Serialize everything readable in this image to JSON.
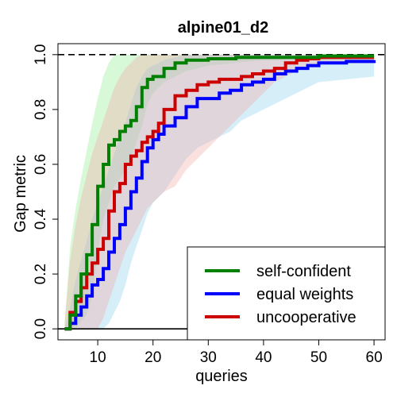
{
  "chart_data": {
    "type": "line",
    "title": "alpine01_d2",
    "xlabel": "queries",
    "ylabel": "Gap metric",
    "xlim": [
      2.8,
      62
    ],
    "ylim": [
      -0.04,
      1.04
    ],
    "x_ticks": [
      10,
      20,
      30,
      40,
      50,
      60
    ],
    "x_tick_labels": [
      "10",
      "20",
      "30",
      "40",
      "50",
      "60"
    ],
    "y_ticks": [
      0.0,
      0.2,
      0.4,
      0.6,
      0.8,
      1.0
    ],
    "y_tick_labels": [
      "0.0",
      "0.2",
      "0.4",
      "0.6",
      "0.8",
      "1.0"
    ],
    "reference_lines": [
      {
        "y": 1.0,
        "style": "dashed",
        "color": "#000000"
      },
      {
        "y": 0.0,
        "style": "solid",
        "color": "#000000"
      }
    ],
    "legend": {
      "position": "bottom-right"
    },
    "series": [
      {
        "name": "self-confident",
        "color": "#008000",
        "band_color": "#90ee90",
        "x": [
          4,
          5,
          6,
          7,
          8,
          9,
          10,
          11,
          12,
          13,
          14,
          15,
          16,
          17,
          18,
          19,
          20,
          22,
          24,
          26,
          28,
          30,
          35,
          40,
          45,
          50,
          55,
          60
        ],
        "y": [
          0.0,
          0.05,
          0.12,
          0.2,
          0.27,
          0.38,
          0.52,
          0.6,
          0.67,
          0.69,
          0.72,
          0.74,
          0.76,
          0.81,
          0.88,
          0.91,
          0.92,
          0.95,
          0.97,
          0.98,
          0.98,
          0.985,
          0.99,
          0.99,
          0.99,
          0.995,
          0.995,
          0.995
        ],
        "lower": [
          0.0,
          0.0,
          0.0,
          0.03,
          0.05,
          0.12,
          0.28,
          0.4,
          0.46,
          0.52,
          0.55,
          0.58,
          0.62,
          0.68,
          0.74,
          0.82,
          0.86,
          0.9,
          0.92,
          0.94,
          0.95,
          0.96,
          0.97,
          0.98,
          0.98,
          0.98,
          0.98,
          0.98
        ],
        "upper": [
          0.02,
          0.3,
          0.44,
          0.55,
          0.65,
          0.75,
          0.84,
          0.92,
          0.97,
          1.0,
          1.0,
          1.0,
          1.0,
          1.0,
          1.0,
          1.0,
          1.0,
          1.0,
          1.0,
          1.0,
          1.0,
          1.0,
          1.0,
          1.0,
          1.0,
          1.0,
          1.0,
          1.0
        ]
      },
      {
        "name": "equal weights",
        "color": "#0000ff",
        "band_color": "#87ceeb",
        "x": [
          4,
          5,
          6,
          7,
          8,
          9,
          10,
          11,
          12,
          13,
          14,
          15,
          16,
          17,
          18,
          19,
          20,
          21,
          22,
          24,
          26,
          28,
          30,
          32,
          34,
          36,
          38,
          40,
          42,
          44,
          46,
          48,
          50,
          55,
          60
        ],
        "y": [
          0.0,
          0.02,
          0.05,
          0.08,
          0.12,
          0.16,
          0.18,
          0.22,
          0.28,
          0.33,
          0.38,
          0.44,
          0.5,
          0.55,
          0.61,
          0.66,
          0.69,
          0.71,
          0.74,
          0.77,
          0.81,
          0.84,
          0.84,
          0.86,
          0.87,
          0.89,
          0.9,
          0.91,
          0.93,
          0.94,
          0.95,
          0.96,
          0.97,
          0.975,
          0.98
        ],
        "lower": [
          0.0,
          0.0,
          0.0,
          0.0,
          0.0,
          0.0,
          0.0,
          0.0,
          0.02,
          0.06,
          0.1,
          0.16,
          0.24,
          0.3,
          0.36,
          0.42,
          0.46,
          0.48,
          0.5,
          0.56,
          0.62,
          0.66,
          0.68,
          0.7,
          0.72,
          0.76,
          0.78,
          0.8,
          0.82,
          0.84,
          0.86,
          0.88,
          0.9,
          0.91,
          0.92
        ],
        "upper": [
          0.0,
          0.08,
          0.18,
          0.25,
          0.32,
          0.4,
          0.46,
          0.52,
          0.58,
          0.64,
          0.7,
          0.75,
          0.82,
          0.88,
          0.92,
          0.95,
          0.96,
          0.97,
          0.98,
          0.99,
          1.0,
          1.0,
          1.0,
          1.0,
          1.0,
          1.0,
          1.0,
          1.0,
          1.0,
          1.0,
          1.0,
          1.0,
          1.0,
          1.0,
          1.0
        ]
      },
      {
        "name": "uncooperative",
        "color": "#cc0000",
        "band_color": "#f4a6a6",
        "x": [
          4,
          5,
          6,
          7,
          8,
          9,
          10,
          11,
          12,
          13,
          14,
          15,
          16,
          17,
          18,
          19,
          20,
          21,
          22,
          24,
          26,
          28,
          30,
          32,
          34,
          36,
          38,
          40,
          42,
          44,
          46,
          48,
          50,
          55,
          60
        ],
        "y": [
          0.0,
          0.06,
          0.1,
          0.15,
          0.2,
          0.24,
          0.29,
          0.33,
          0.43,
          0.5,
          0.53,
          0.6,
          0.63,
          0.65,
          0.68,
          0.7,
          0.72,
          0.75,
          0.8,
          0.85,
          0.87,
          0.89,
          0.9,
          0.91,
          0.91,
          0.92,
          0.93,
          0.94,
          0.95,
          0.97,
          0.98,
          0.985,
          0.99,
          0.99,
          0.99
        ],
        "lower": [
          0.0,
          0.0,
          0.0,
          0.0,
          0.0,
          0.0,
          0.0,
          0.04,
          0.1,
          0.16,
          0.22,
          0.28,
          0.32,
          0.36,
          0.4,
          0.44,
          0.46,
          0.48,
          0.5,
          0.52,
          0.58,
          0.62,
          0.66,
          0.7,
          0.74,
          0.78,
          0.82,
          0.86,
          0.9,
          0.92,
          0.94,
          0.96,
          0.97,
          0.97,
          0.97
        ],
        "upper": [
          0.02,
          0.25,
          0.38,
          0.48,
          0.56,
          0.64,
          0.7,
          0.76,
          0.82,
          0.88,
          0.92,
          0.95,
          0.97,
          0.99,
          1.0,
          1.0,
          1.0,
          1.0,
          1.0,
          1.0,
          1.0,
          1.0,
          1.0,
          1.0,
          1.0,
          1.0,
          1.0,
          1.0,
          1.0,
          1.0,
          1.0,
          1.0,
          1.0,
          1.0,
          1.0
        ]
      }
    ]
  }
}
